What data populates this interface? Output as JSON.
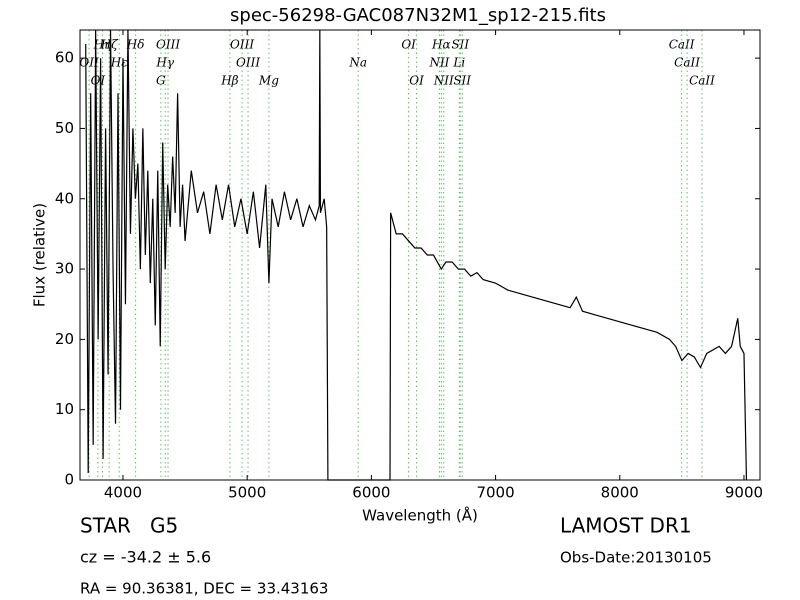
{
  "chart_data": {
    "type": "line",
    "title": "spec-56298-GAC087N32M1_sp12-215.fits",
    "x_label": "Wavelength (Å)",
    "y_label": "Flux (relative)",
    "xlim": [
      3654,
      9129
    ],
    "ylim": [
      0,
      64
    ],
    "xticks": [
      4000,
      5000,
      6000,
      7000,
      8000,
      9000
    ],
    "yticks": [
      0,
      10,
      20,
      30,
      40,
      50,
      60
    ],
    "series": [
      {
        "name": "flux",
        "color": "#000000",
        "x": [
          3700,
          3720,
          3740,
          3760,
          3780,
          3800,
          3820,
          3840,
          3860,
          3880,
          3900,
          3920,
          3940,
          3960,
          3980,
          4000,
          4020,
          4040,
          4060,
          4080,
          4100,
          4120,
          4140,
          4160,
          4180,
          4200,
          4220,
          4240,
          4260,
          4280,
          4300,
          4320,
          4340,
          4360,
          4380,
          4400,
          4420,
          4440,
          4460,
          4480,
          4500,
          4550,
          4600,
          4650,
          4700,
          4750,
          4800,
          4850,
          4900,
          4950,
          5000,
          5050,
          5100,
          5150,
          5175,
          5200,
          5250,
          5300,
          5350,
          5400,
          5450,
          5500,
          5550,
          5580,
          5585,
          5590,
          5620,
          5640,
          5650,
          6150,
          6155,
          6200,
          6250,
          6300,
          6350,
          6400,
          6450,
          6500,
          6563,
          6600,
          6650,
          6700,
          6750,
          6800,
          6850,
          6900,
          7000,
          7100,
          7200,
          7300,
          7400,
          7500,
          7600,
          7650,
          7700,
          7800,
          7900,
          8000,
          8100,
          8200,
          8300,
          8400,
          8450,
          8500,
          8550,
          8600,
          8650,
          8700,
          8800,
          8850,
          8900,
          8950,
          8970,
          9000,
          9020
        ],
        "values": [
          62,
          1,
          55,
          5,
          64,
          20,
          60,
          3,
          50,
          15,
          64,
          30,
          8,
          55,
          10,
          60,
          25,
          64,
          35,
          50,
          40,
          45,
          30,
          50,
          32,
          44,
          28,
          40,
          22,
          44,
          19,
          48,
          30,
          42,
          36,
          46,
          38,
          55,
          36,
          42,
          34,
          44,
          38,
          41,
          35,
          42,
          37,
          42,
          36,
          40,
          35,
          41,
          33,
          42,
          28,
          40,
          36,
          41,
          37,
          40,
          36,
          39,
          37,
          39,
          64,
          38,
          40,
          36,
          0,
          0,
          38,
          35,
          35,
          34,
          33,
          33,
          32,
          32,
          30,
          31,
          31,
          30,
          30,
          29,
          29.5,
          28.5,
          28,
          27,
          26.5,
          26,
          25.5,
          25,
          24.5,
          26,
          24,
          23.5,
          23,
          22.5,
          22,
          21.5,
          21,
          20,
          19,
          17,
          18,
          17.5,
          16,
          18,
          19,
          18,
          19,
          23,
          19,
          18,
          0
        ]
      }
    ],
    "line_color": "#66bb66",
    "lines_upper": [
      {
        "x": 3835,
        "label": "Hη"
      },
      {
        "x": 3889,
        "label": "Hζ"
      },
      {
        "x": 4102,
        "label": "Hδ"
      },
      {
        "x": 4363,
        "label": "OIII"
      },
      {
        "x": 4959,
        "label": "OIII"
      },
      {
        "x": 6300,
        "label": "OI"
      },
      {
        "x": 6563,
        "label": "Hα"
      },
      {
        "x": 6716,
        "label": "SII"
      },
      {
        "x": 8498,
        "label": "CaII"
      }
    ],
    "lines_middle": [
      {
        "x": 3727,
        "label": "OII"
      },
      {
        "x": 3970,
        "label": "Hε"
      },
      {
        "x": 4340,
        "label": "Hγ"
      },
      {
        "x": 5007,
        "label": "OIII"
      },
      {
        "x": 5894,
        "label": "Na"
      },
      {
        "x": 6548,
        "label": "NII"
      },
      {
        "x": 6708,
        "label": "Li"
      },
      {
        "x": 8542,
        "label": "CaII"
      }
    ],
    "lines_lower": [
      {
        "x": 3798,
        "label": "OI"
      },
      {
        "x": 4305,
        "label": "G"
      },
      {
        "x": 4861,
        "label": "Hβ"
      },
      {
        "x": 5175,
        "label": "Mg"
      },
      {
        "x": 6364,
        "label": "OI"
      },
      {
        "x": 6583,
        "label": "NII"
      },
      {
        "x": 6731,
        "label": "SII"
      },
      {
        "x": 8662,
        "label": "CaII"
      }
    ],
    "annotations": [
      "STAR   G5",
      "cz = -34.2 ± 5.6",
      "RA = 90.36381, DEC = 33.43163",
      "LAMOST DR1",
      "Obs-Date:20130105"
    ]
  }
}
